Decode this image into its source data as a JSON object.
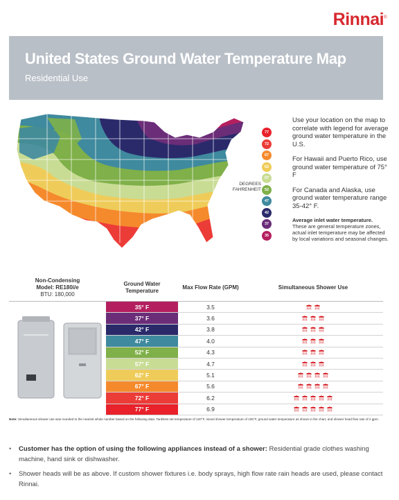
{
  "brand": {
    "name": "Rinnai",
    "mark": "®"
  },
  "header": {
    "title": "United States Ground Water Temperature Map",
    "subtitle": "Residential Use"
  },
  "legend": {
    "label": "DEGREES FAHRENHEIT",
    "items": [
      {
        "value": "77",
        "color": "#e8212b"
      },
      {
        "value": "72",
        "color": "#ec3c38"
      },
      {
        "value": "67",
        "color": "#f58a2d"
      },
      {
        "value": "62",
        "color": "#efcc5a"
      },
      {
        "value": "57",
        "color": "#c9dc94"
      },
      {
        "value": "52",
        "color": "#7fb049"
      },
      {
        "value": "47",
        "color": "#3f8a9e"
      },
      {
        "value": "42",
        "color": "#2a2a6b"
      },
      {
        "value": "37",
        "color": "#6b2d78"
      },
      {
        "value": "35",
        "color": "#b4205f"
      }
    ]
  },
  "info": {
    "p1": "Use your location on the map to correlate with legend for average ground water temperature in the U.S.",
    "p2": "For Hawaii and Puerto Rico, use ground water temperature of 75° F",
    "p3": "For Canada and Alaska, use ground water temperature range 35-42° F.",
    "note_title": "Average inlet water temperature.",
    "note_body": "These are general temperature zones, actual inlet temperature may be affected by local variations and seasonal changes."
  },
  "table": {
    "model_line1": "Non-Condensing",
    "model_line2": "Model: RE180i/e",
    "model_btu": "BTU: 180,000",
    "col_temp": "Ground Water Temperature",
    "col_flow": "Max Flow Rate (GPM)",
    "col_shower": "Simultaneous Shower Use",
    "rows": [
      {
        "temp": "35° F",
        "flow": "3.5",
        "heads": 2,
        "color": "#b4205f"
      },
      {
        "temp": "37° F",
        "flow": "3.6",
        "heads": 3,
        "color": "#6b2d78"
      },
      {
        "temp": "42° F",
        "flow": "3.8",
        "heads": 3,
        "color": "#2a2a6b"
      },
      {
        "temp": "47° F",
        "flow": "4.0",
        "heads": 3,
        "color": "#3f8a9e"
      },
      {
        "temp": "52° F",
        "flow": "4.3",
        "heads": 3,
        "color": "#7fb049"
      },
      {
        "temp": "57° F",
        "flow": "4.7",
        "heads": 3,
        "color": "#c9dc94"
      },
      {
        "temp": "62° F",
        "flow": "5.1",
        "heads": 4,
        "color": "#efcc5a"
      },
      {
        "temp": "67° F",
        "flow": "5.6",
        "heads": 4,
        "color": "#f58a2d"
      },
      {
        "temp": "72° F",
        "flow": "6.2",
        "heads": 5,
        "color": "#ec3c38"
      },
      {
        "temp": "77° F",
        "flow": "6.9",
        "heads": 5,
        "color": "#e8212b"
      }
    ]
  },
  "footnote": {
    "label": "Note:",
    "text": "Simultaneous shower use was rounded to the nearest whole number based on the following data. Tankless set temperature of 120°F, mixed shower temperature of 105°F, ground water temperature as shown in the chart, and shower head flow rate of 2 gpm."
  },
  "bullets": [
    {
      "lead": "Customer has the option of using the following appliances instead of a shower:",
      "text": " Residential grade clothes washing machine, hand sink or dishwasher."
    },
    {
      "lead": "",
      "text": "Shower heads will be as above. If custom shower fixtures i.e. body sprays, high flow rate rain heads are used, please contact Rinnai."
    }
  ]
}
